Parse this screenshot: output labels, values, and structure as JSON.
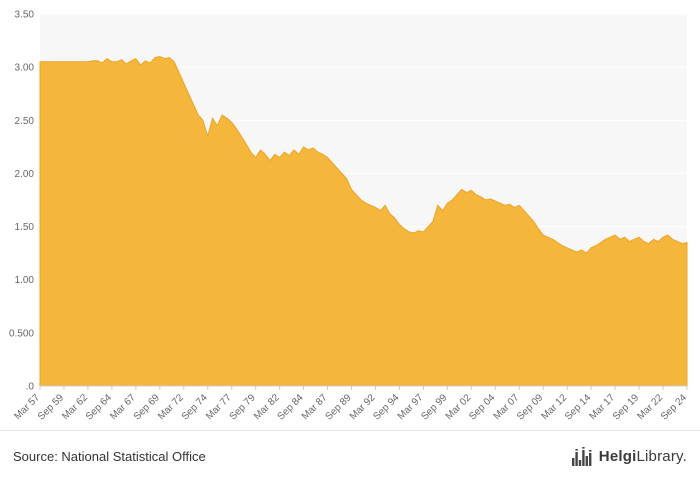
{
  "chart_data": {
    "type": "area",
    "title": "",
    "xlabel": "",
    "ylabel": "",
    "ylim": [
      0,
      3.5
    ],
    "grid": true,
    "legend": "none",
    "plot_bg": "#f7f7f7",
    "grid_color": "#ffffff",
    "series_color": "#f5b63c",
    "series_edge": "#eca42c",
    "axis_color": "#cccccc",
    "tick_color": "#666666",
    "xtick_every": 5,
    "xticks": [
      "Mar 57",
      "Sep 59",
      "Mar 62",
      "Sep 64",
      "Mar 67",
      "Sep 69",
      "Mar 72",
      "Sep 74",
      "Mar 77",
      "Sep 79",
      "Mar 82",
      "Sep 84",
      "Mar 87",
      "Sep 89",
      "Mar 92",
      "Sep 94",
      "Mar 97",
      "Sep 99",
      "Mar 02",
      "Sep 04",
      "Mar 07",
      "Sep 09",
      "Mar 12",
      "Sep 14",
      "Mar 17",
      "Sep 19",
      "Mar 22",
      "Sep 24"
    ],
    "yticks": [
      {
        "value": 3.5,
        "label": "3.50"
      },
      {
        "value": 3.0,
        "label": "3.00"
      },
      {
        "value": 2.5,
        "label": "2.50"
      },
      {
        "value": 2.0,
        "label": "2.00"
      },
      {
        "value": 1.5,
        "label": "1.50"
      },
      {
        "value": 1.0,
        "label": "1.00"
      },
      {
        "value": 0.5,
        "label": "0.500"
      },
      {
        "value": 0.0,
        "label": ".0"
      }
    ],
    "x_period": "semiannual Mar/Sep 1957-2024",
    "values": [
      3.05,
      3.05,
      3.05,
      3.05,
      3.05,
      3.05,
      3.05,
      3.05,
      3.05,
      3.05,
      3.05,
      3.06,
      3.06,
      3.04,
      3.08,
      3.05,
      3.05,
      3.07,
      3.03,
      3.06,
      3.08,
      3.02,
      3.06,
      3.04,
      3.09,
      3.1,
      3.08,
      3.09,
      3.05,
      2.95,
      2.85,
      2.75,
      2.65,
      2.55,
      2.5,
      2.35,
      2.52,
      2.45,
      2.55,
      2.52,
      2.48,
      2.42,
      2.35,
      2.28,
      2.2,
      2.15,
      2.22,
      2.18,
      2.12,
      2.18,
      2.15,
      2.2,
      2.17,
      2.22,
      2.18,
      2.25,
      2.22,
      2.24,
      2.2,
      2.18,
      2.15,
      2.1,
      2.05,
      2.0,
      1.95,
      1.85,
      1.8,
      1.75,
      1.72,
      1.7,
      1.68,
      1.65,
      1.7,
      1.62,
      1.58,
      1.52,
      1.48,
      1.45,
      1.44,
      1.46,
      1.45,
      1.5,
      1.55,
      1.7,
      1.65,
      1.72,
      1.75,
      1.8,
      1.85,
      1.82,
      1.84,
      1.8,
      1.78,
      1.75,
      1.76,
      1.74,
      1.72,
      1.7,
      1.71,
      1.68,
      1.7,
      1.65,
      1.6,
      1.55,
      1.48,
      1.42,
      1.4,
      1.38,
      1.35,
      1.32,
      1.3,
      1.28,
      1.26,
      1.28,
      1.25,
      1.3,
      1.32,
      1.35,
      1.38,
      1.4,
      1.42,
      1.38,
      1.4,
      1.36,
      1.38,
      1.4,
      1.36,
      1.34,
      1.38,
      1.36,
      1.4,
      1.42,
      1.38,
      1.36,
      1.34,
      1.35
    ]
  },
  "footer": {
    "source": "Source: National Statistical Office",
    "logo": {
      "name_bold": "Helgi",
      "name_rest": "Library."
    }
  }
}
